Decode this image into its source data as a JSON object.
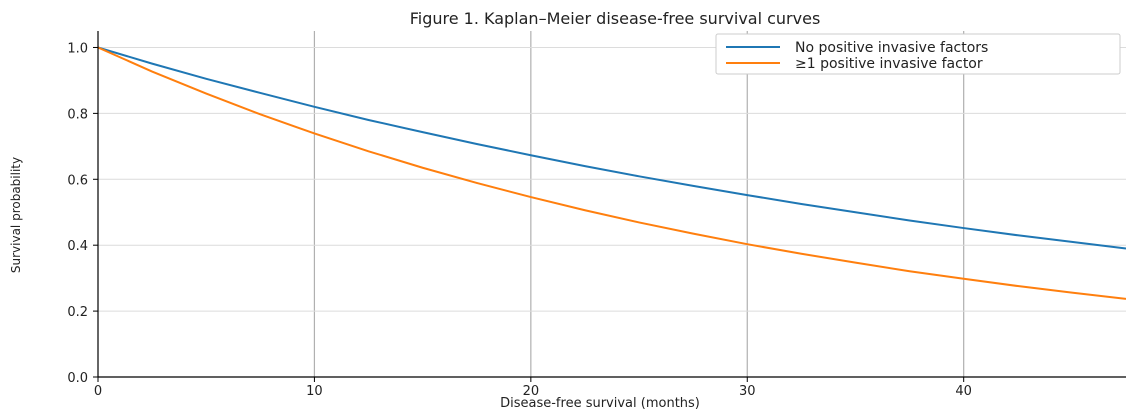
{
  "chart_data": {
    "type": "line",
    "title": "Figure 1. Kaplan–Meier disease-free survival curves",
    "xlabel": "Disease-free survival (months)",
    "ylabel": "Survival probability",
    "xlim": [
      0,
      47.5
    ],
    "ylim": [
      0.0,
      1.05
    ],
    "xticks": [
      0,
      10,
      20,
      30,
      40
    ],
    "yticks": [
      0.0,
      0.2,
      0.4,
      0.6,
      0.8,
      1.0
    ],
    "xtick_labels": [
      "0",
      "10",
      "20",
      "30",
      "40"
    ],
    "ytick_labels": [
      "0.0",
      "0.2",
      "0.4",
      "0.6",
      "0.8",
      "1.0"
    ],
    "grid": true,
    "legend_position": "top-right",
    "series": [
      {
        "name": "No positive invasive factors",
        "color": "#1f77b4",
        "x": [
          0,
          2.5,
          5,
          7.5,
          10,
          12.5,
          15,
          17.5,
          20,
          22.5,
          25,
          27.5,
          30,
          32.5,
          35,
          37.5,
          40,
          42.5,
          45,
          47.5
        ],
        "y": [
          1.0,
          0.951,
          0.905,
          0.862,
          0.82,
          0.78,
          0.743,
          0.707,
          0.673,
          0.64,
          0.609,
          0.58,
          0.552,
          0.525,
          0.5,
          0.475,
          0.452,
          0.43,
          0.41,
          0.39
        ]
      },
      {
        "name": "≥1 positive invasive factor",
        "color": "#ff7f0e",
        "x": [
          0,
          2.5,
          5,
          7.5,
          10,
          12.5,
          15,
          17.5,
          20,
          22.5,
          25,
          27.5,
          30,
          32.5,
          35,
          37.5,
          40,
          42.5,
          45,
          47.5
        ],
        "y": [
          1.0,
          0.927,
          0.86,
          0.797,
          0.739,
          0.685,
          0.635,
          0.589,
          0.546,
          0.506,
          0.469,
          0.435,
          0.403,
          0.374,
          0.347,
          0.321,
          0.298,
          0.276,
          0.256,
          0.237
        ]
      }
    ]
  }
}
